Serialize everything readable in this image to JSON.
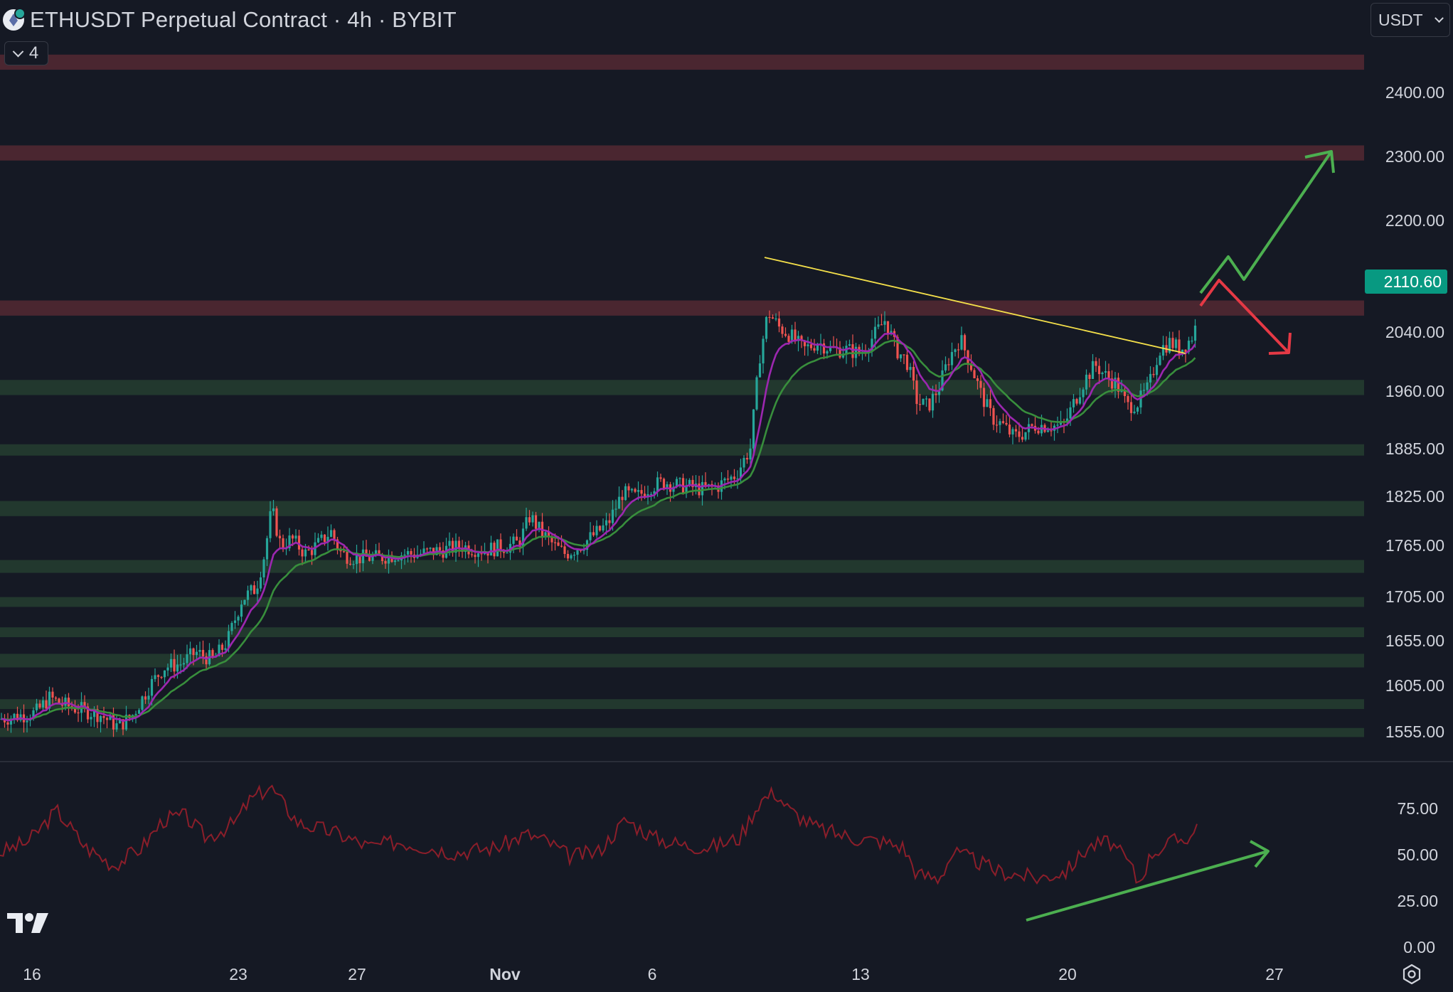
{
  "header": {
    "title": "ETHUSDT Perpetual Contract · 4h · BYBIT",
    "indicator_count": "4",
    "currency": "USDT",
    "symbol_icon": "ethereum-icon"
  },
  "price_axis": {
    "ticks": [
      "2400.00",
      "2300.00",
      "2200.00",
      "2040.00",
      "1960.00",
      "1885.00",
      "1825.00",
      "1765.00",
      "1705.00",
      "1655.00",
      "1605.00",
      "1555.00"
    ],
    "current_price": "2110.60",
    "current_price_color": "#089981"
  },
  "rsi_axis": {
    "ticks": [
      "75.00",
      "50.00",
      "25.00",
      "0.00"
    ]
  },
  "time_axis": {
    "ticks": [
      "16",
      "23",
      "27",
      "Nov",
      "6",
      "13",
      "20",
      "27"
    ]
  },
  "colors": {
    "background": "#151924",
    "up": "#26a69a",
    "down": "#ef5350",
    "resistance_zone": "#4a2630",
    "support_zone": "#22382e",
    "ma_fast": "#9c27b0",
    "ma_slow": "#388e3c",
    "trendline": "#f5e04a",
    "rsi_line": "#8b1e2a",
    "arrow_up": "#4caf50",
    "arrow_down": "#e53945"
  },
  "icons": {
    "logo": "tradingview-logo",
    "settings": "gear-icon"
  },
  "chart_data": {
    "type": "candlestick",
    "symbol": "ETHUSDT",
    "timeframe": "4h",
    "exchange": "BYBIT",
    "price_range": [
      1530,
      2475
    ],
    "last_price": 2110.6,
    "resistance_zones": [
      [
        2430,
        2450
      ],
      [
        2310,
        2330
      ],
      [
        2105,
        2125
      ]
    ],
    "support_zones": [
      [
        2000,
        2020
      ],
      [
        1920,
        1935
      ],
      [
        1840,
        1860
      ],
      [
        1765,
        1782
      ],
      [
        1720,
        1733
      ],
      [
        1680,
        1693
      ],
      [
        1640,
        1658
      ],
      [
        1585,
        1598
      ],
      [
        1548,
        1560
      ]
    ],
    "trendline": {
      "from": {
        "date": "Nov 9",
        "price": 2138
      },
      "to": {
        "date": "Nov 24",
        "price": 2010
      }
    },
    "rsi_range": [
      0,
      100
    ],
    "rsi_last": 68
  }
}
